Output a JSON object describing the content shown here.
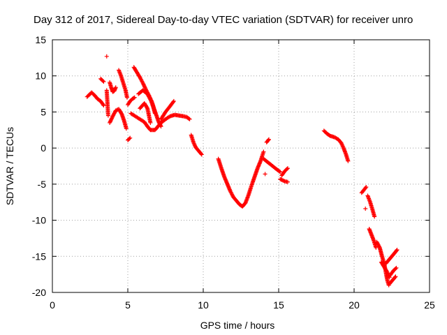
{
  "chart_data": {
    "type": "scatter",
    "title": "Day 312 of 2017, Sidereal Day-to-day VTEC variation (SDTVAR) for receiver unro",
    "xlabel": "GPS time / hours",
    "ylabel": "SDTVAR / TECUs",
    "xlim": [
      0,
      25
    ],
    "ylim": [
      -20,
      15
    ],
    "xticks": [
      0,
      5,
      10,
      15,
      20,
      25
    ],
    "yticks": [
      -20,
      -15,
      -10,
      -5,
      0,
      5,
      10,
      15
    ],
    "x_tick_labels": [
      "0",
      "5",
      "10",
      "15",
      "20",
      "25"
    ],
    "y_tick_labels": [
      "-20",
      "-15",
      "-10",
      "-5",
      "0",
      "5",
      "10",
      "15"
    ],
    "grid": true,
    "legend": "none",
    "marker": "+",
    "color": "#ff0000",
    "series": [
      {
        "segments": [
          [
            [
              2.3,
              7.1
            ],
            [
              2.6,
              7.7
            ],
            [
              2.8,
              7.3
            ],
            [
              3.0,
              6.8
            ],
            [
              3.2,
              6.5
            ],
            [
              3.4,
              5.9
            ]
          ],
          [
            [
              3.2,
              9.6
            ],
            [
              3.4,
              9.2
            ]
          ],
          [
            [
              3.6,
              12.7
            ]
          ],
          [
            [
              3.6,
              8.0
            ],
            [
              3.7,
              4.5
            ]
          ],
          [
            [
              3.8,
              9.1
            ],
            [
              3.9,
              8.4
            ],
            [
              4.0,
              7.8
            ],
            [
              4.1,
              7.9
            ],
            [
              4.2,
              8.4
            ]
          ],
          [
            [
              3.8,
              3.5
            ],
            [
              4.0,
              4.4
            ],
            [
              4.2,
              5.2
            ],
            [
              4.4,
              5.4
            ],
            [
              4.6,
              4.7
            ],
            [
              4.75,
              3.8
            ],
            [
              4.9,
              2.7
            ]
          ],
          [
            [
              4.4,
              10.8
            ],
            [
              4.55,
              10.0
            ],
            [
              4.7,
              9.0
            ],
            [
              4.85,
              8.0
            ],
            [
              4.95,
              7.0
            ]
          ],
          [
            [
              5.0,
              1.1
            ],
            [
              5.15,
              1.4
            ]
          ],
          [
            [
              5.0,
              6.0
            ],
            [
              5.15,
              6.5
            ],
            [
              5.3,
              6.8
            ],
            [
              5.45,
              7.0
            ]
          ],
          [
            [
              5.4,
              11.2
            ],
            [
              5.6,
              10.5
            ],
            [
              5.8,
              9.8
            ],
            [
              6.0,
              9.0
            ],
            [
              6.2,
              8.1
            ],
            [
              6.4,
              7.3
            ],
            [
              6.6,
              6.4
            ],
            [
              6.75,
              5.4
            ],
            [
              6.9,
              4.5
            ],
            [
              7.05,
              3.6
            ],
            [
              7.2,
              3.0
            ]
          ],
          [
            [
              5.7,
              7.5
            ],
            [
              6.0,
              8.0
            ],
            [
              6.3,
              7.5
            ],
            [
              6.55,
              6.5
            ],
            [
              6.7,
              5.6
            ],
            [
              6.8,
              4.8
            ]
          ],
          [
            [
              5.2,
              4.8
            ],
            [
              5.5,
              4.4
            ],
            [
              5.8,
              4.0
            ],
            [
              6.1,
              3.6
            ],
            [
              6.3,
              3.0
            ],
            [
              6.5,
              2.5
            ],
            [
              6.8,
              2.5
            ],
            [
              7.0,
              3.0
            ],
            [
              7.2,
              3.5
            ],
            [
              7.5,
              4.0
            ],
            [
              7.8,
              4.4
            ],
            [
              8.1,
              4.6
            ],
            [
              8.4,
              4.5
            ],
            [
              8.7,
              4.4
            ],
            [
              8.9,
              4.3
            ],
            [
              9.1,
              4.0
            ]
          ],
          [
            [
              7.2,
              4.0
            ],
            [
              7.5,
              5.0
            ],
            [
              7.8,
              5.8
            ],
            [
              8.05,
              6.5
            ]
          ],
          [
            [
              5.8,
              5.5
            ],
            [
              6.1,
              6.2
            ],
            [
              6.3,
              5.5
            ],
            [
              6.5,
              3.5
            ]
          ],
          [
            [
              9.2,
              1.8
            ],
            [
              9.35,
              0.8
            ],
            [
              9.5,
              0.1
            ],
            [
              9.7,
              -0.4
            ],
            [
              9.9,
              -0.9
            ]
          ],
          [
            [
              11.0,
              -1.5
            ],
            [
              11.2,
              -2.8
            ],
            [
              11.4,
              -4.0
            ],
            [
              11.6,
              -5.0
            ],
            [
              11.8,
              -6.0
            ],
            [
              12.0,
              -6.8
            ],
            [
              12.2,
              -7.3
            ],
            [
              12.4,
              -7.8
            ],
            [
              12.6,
              -8.1
            ],
            [
              12.8,
              -7.6
            ],
            [
              13.0,
              -6.5
            ],
            [
              13.2,
              -5.2
            ],
            [
              13.4,
              -4.0
            ],
            [
              13.6,
              -2.8
            ],
            [
              13.8,
              -1.8
            ],
            [
              14.0,
              -0.5
            ]
          ],
          [
            [
              14.1,
              -3.6
            ]
          ],
          [
            [
              14.0,
              -1.5
            ],
            [
              14.3,
              -2.0
            ],
            [
              14.6,
              -2.5
            ],
            [
              14.9,
              -3.0
            ],
            [
              15.1,
              -3.3
            ]
          ],
          [
            [
              14.2,
              0.8
            ],
            [
              14.35,
              1.2
            ]
          ],
          [
            [
              15.1,
              -4.3
            ],
            [
              15.4,
              -4.6
            ],
            [
              15.6,
              -4.7
            ]
          ],
          [
            [
              15.2,
              -3.8
            ],
            [
              15.4,
              -3.2
            ],
            [
              15.6,
              -2.8
            ]
          ],
          [
            [
              18.0,
              2.4
            ],
            [
              18.2,
              2.0
            ],
            [
              18.4,
              1.7
            ],
            [
              18.7,
              1.5
            ],
            [
              18.95,
              1.2
            ],
            [
              19.15,
              0.7
            ],
            [
              19.3,
              0.0
            ],
            [
              19.45,
              -0.8
            ],
            [
              19.6,
              -1.8
            ]
          ],
          [
            [
              20.5,
              -6.2
            ],
            [
              20.8,
              -5.4
            ]
          ],
          [
            [
              20.75,
              -8.4
            ]
          ],
          [
            [
              20.9,
              -6.6
            ],
            [
              21.05,
              -7.4
            ],
            [
              21.2,
              -8.4
            ],
            [
              21.35,
              -9.5
            ]
          ],
          [
            [
              21.0,
              -11.2
            ],
            [
              21.15,
              -12.0
            ],
            [
              21.3,
              -12.8
            ],
            [
              21.45,
              -13.8
            ]
          ],
          [
            [
              21.5,
              -13.0
            ],
            [
              21.7,
              -13.8
            ],
            [
              21.85,
              -15.0
            ],
            [
              22.0,
              -16.0
            ],
            [
              22.1,
              -17.2
            ],
            [
              22.2,
              -18.3
            ],
            [
              22.3,
              -19.0
            ]
          ],
          [
            [
              21.8,
              -15.8
            ],
            [
              22.0,
              -16.5
            ],
            [
              22.2,
              -17.2
            ],
            [
              22.35,
              -17.9
            ]
          ],
          [
            [
              22.35,
              -18.8
            ],
            [
              22.55,
              -18.3
            ],
            [
              22.75,
              -17.8
            ]
          ],
          [
            [
              22.1,
              -16.0
            ],
            [
              22.3,
              -15.5
            ],
            [
              22.5,
              -15.0
            ],
            [
              22.7,
              -14.5
            ],
            [
              22.85,
              -14.1
            ]
          ],
          [
            [
              22.4,
              -17.6
            ],
            [
              22.6,
              -17.0
            ],
            [
              22.8,
              -16.6
            ]
          ]
        ]
      }
    ]
  }
}
